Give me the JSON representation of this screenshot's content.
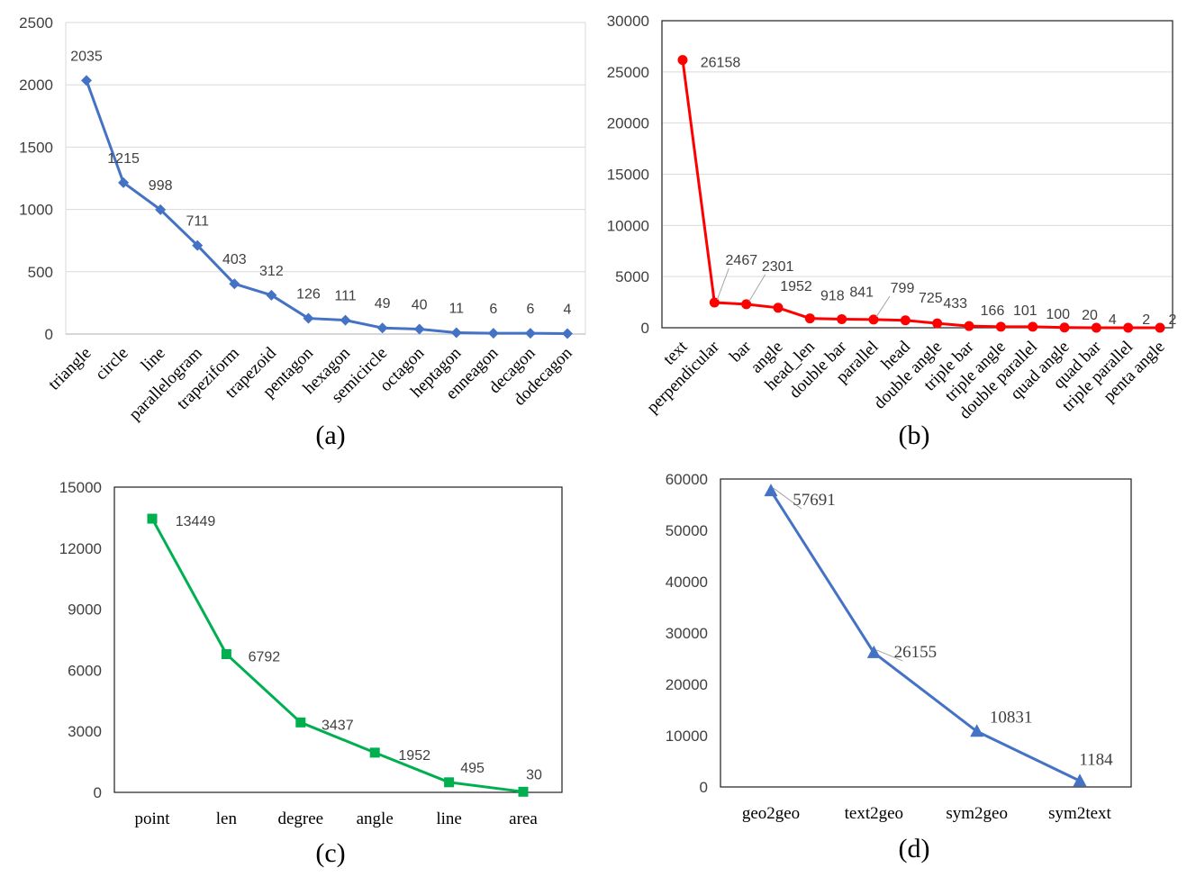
{
  "chart_data": [
    {
      "id": "a",
      "type": "line",
      "caption": "(a)",
      "color": "#4472c4",
      "marker": "diamond",
      "categories": [
        "triangle",
        "circle",
        "line",
        "parallelogram",
        "trapeziform",
        "trapezoid",
        "pentagon",
        "hexagon",
        "semicircle",
        "octagon",
        "heptagon",
        "enneagon",
        "decagon",
        "dodecagon"
      ],
      "values": [
        2035,
        1215,
        998,
        711,
        403,
        312,
        126,
        111,
        49,
        40,
        11,
        6,
        6,
        4
      ],
      "data_labels": [
        "2035",
        "1215",
        "998",
        "711",
        "403",
        "312",
        "126",
        "111",
        "49",
        "40",
        "11",
        "6",
        "6",
        "4"
      ],
      "ylim": [
        0,
        2500
      ],
      "yticks": [
        "0",
        "500",
        "1000",
        "1500",
        "2000",
        "2500"
      ],
      "grid": true,
      "xlabel_rotation": "-45deg"
    },
    {
      "id": "b",
      "type": "line",
      "caption": "(b)",
      "color": "#ff0000",
      "marker": "circle",
      "categories": [
        "text",
        "perpendicular",
        "bar",
        "angle",
        "head_len",
        "double bar",
        "parallel",
        "head",
        "double angle",
        "triple bar",
        "triple angle",
        "double parallel",
        "quad angle",
        "quad bar",
        "triple parallel",
        "penta angle"
      ],
      "values": [
        26158,
        2467,
        2301,
        1952,
        918,
        841,
        799,
        725,
        433,
        166,
        101,
        100,
        20,
        4,
        2,
        2
      ],
      "data_labels": [
        "26158",
        "2467",
        "2301",
        "1952",
        "918",
        "841",
        "799",
        "725",
        "433",
        "166",
        "101",
        "100",
        "20",
        "4",
        "2",
        "2"
      ],
      "ylim": [
        0,
        30000
      ],
      "yticks": [
        "0",
        "5000",
        "10000",
        "15000",
        "20000",
        "25000",
        "30000"
      ],
      "grid": true,
      "xlabel_rotation": "-45deg"
    },
    {
      "id": "c",
      "type": "line",
      "caption": "(c)",
      "color": "#00b050",
      "marker": "square",
      "categories": [
        "point",
        "len",
        "degree",
        "angle",
        "line",
        "area"
      ],
      "values": [
        13449,
        6792,
        3437,
        1952,
        495,
        30
      ],
      "data_labels": [
        "13449",
        "6792",
        "3437",
        "1952",
        "495",
        "30"
      ],
      "ylim": [
        0,
        15000
      ],
      "yticks": [
        "0",
        "3000",
        "6000",
        "9000",
        "12000",
        "15000"
      ],
      "grid": false
    },
    {
      "id": "d",
      "type": "line",
      "caption": "(d)",
      "color": "#4472c4",
      "marker": "triangle",
      "categories": [
        "geo2geo",
        "text2geo",
        "sym2geo",
        "sym2text"
      ],
      "values": [
        57691,
        26155,
        10831,
        1184
      ],
      "data_labels": [
        "57691",
        "26155",
        "10831",
        "1184"
      ],
      "ylim": [
        0,
        60000
      ],
      "yticks": [
        "0",
        "10000",
        "20000",
        "30000",
        "40000",
        "50000",
        "60000"
      ],
      "grid": false
    }
  ]
}
